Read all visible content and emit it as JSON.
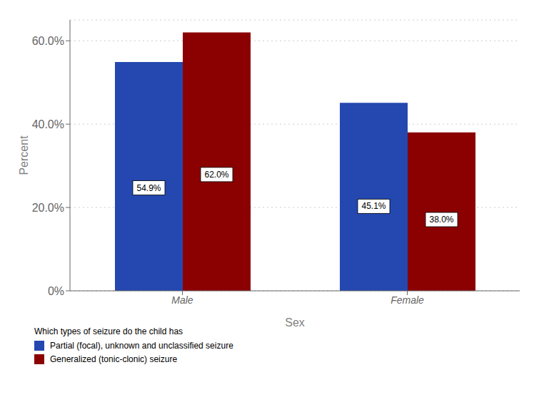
{
  "chart_data": {
    "type": "bar",
    "categories": [
      "Male",
      "Female"
    ],
    "xlabel": "Sex",
    "ylabel": "Percent",
    "series": [
      {
        "name": "Partial (focal), unknown and unclassified seizure",
        "color": "#2448B0",
        "values": [
          54.9,
          45.1
        ],
        "value_labels": [
          "54.9%",
          "45.1%"
        ]
      },
      {
        "name": "Generalized (tonic-clonic) seizure",
        "color": "#8B0000",
        "values": [
          62.0,
          38.0
        ],
        "value_labels": [
          "62.0%",
          "38.0%"
        ]
      }
    ],
    "ylim": [
      0,
      65
    ],
    "yticks": [
      {
        "value": 0,
        "label": "0%"
      },
      {
        "value": 20.0,
        "label": "20.0%"
      },
      {
        "value": 40.0,
        "label": "40.0%"
      },
      {
        "value": 60.0,
        "label": "60.0%"
      }
    ],
    "grid": true,
    "data_labels": true,
    "legend_title": "Which types of seizure do the child has",
    "legend": "bottom"
  }
}
